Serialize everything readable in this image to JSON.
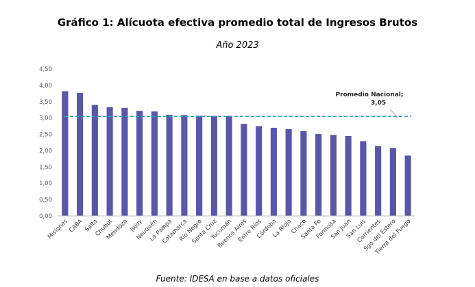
{
  "header": {
    "title": "Gráfico 1: Alícuota efectiva promedio total de Ingresos Brutos",
    "subtitle": "Año 2023"
  },
  "footer": {
    "source": "Fuente: IDESA en base a datos oficiales"
  },
  "colors": {
    "bar": "#5b56a8",
    "reference_line": "#2aa8b5"
  },
  "chart_data": {
    "type": "bar",
    "title": "Gráfico 1: Alícuota efectiva promedio total de Ingresos Brutos",
    "subtitle": "Año 2023",
    "xlabel": "",
    "ylabel": "",
    "ylim": [
      0,
      4.5
    ],
    "y_ticks": [
      "0,00",
      "0,50",
      "1,00",
      "1,50",
      "2,00",
      "2,50",
      "3,00",
      "3,50",
      "4,00",
      "4,50"
    ],
    "grid": false,
    "categories": [
      "Misiones",
      "CABA",
      "Salta",
      "Chubut",
      "Mendoza",
      "Jujuy",
      "Neuquén",
      "La Pampa",
      "Catamarca",
      "Río Negro",
      "Santa Cruz",
      "Tucumán",
      "Buenos Aires",
      "Entre Ríos",
      "Córdoba",
      "La Rioja",
      "Chaco",
      "Santa Fe",
      "Formosa",
      "San Juan",
      "San Luis",
      "Corrientes",
      "Sgo del Estero",
      "Tierra del Fuego"
    ],
    "values": [
      3.82,
      3.77,
      3.4,
      3.33,
      3.31,
      3.22,
      3.2,
      3.1,
      3.09,
      3.07,
      3.06,
      3.06,
      2.82,
      2.75,
      2.7,
      2.66,
      2.6,
      2.51,
      2.48,
      2.45,
      2.29,
      2.14,
      2.08,
      1.85
    ],
    "reference_line": {
      "value": 3.05,
      "label_line1": "Promedio Nacional;",
      "label_line2": "3,05"
    }
  }
}
